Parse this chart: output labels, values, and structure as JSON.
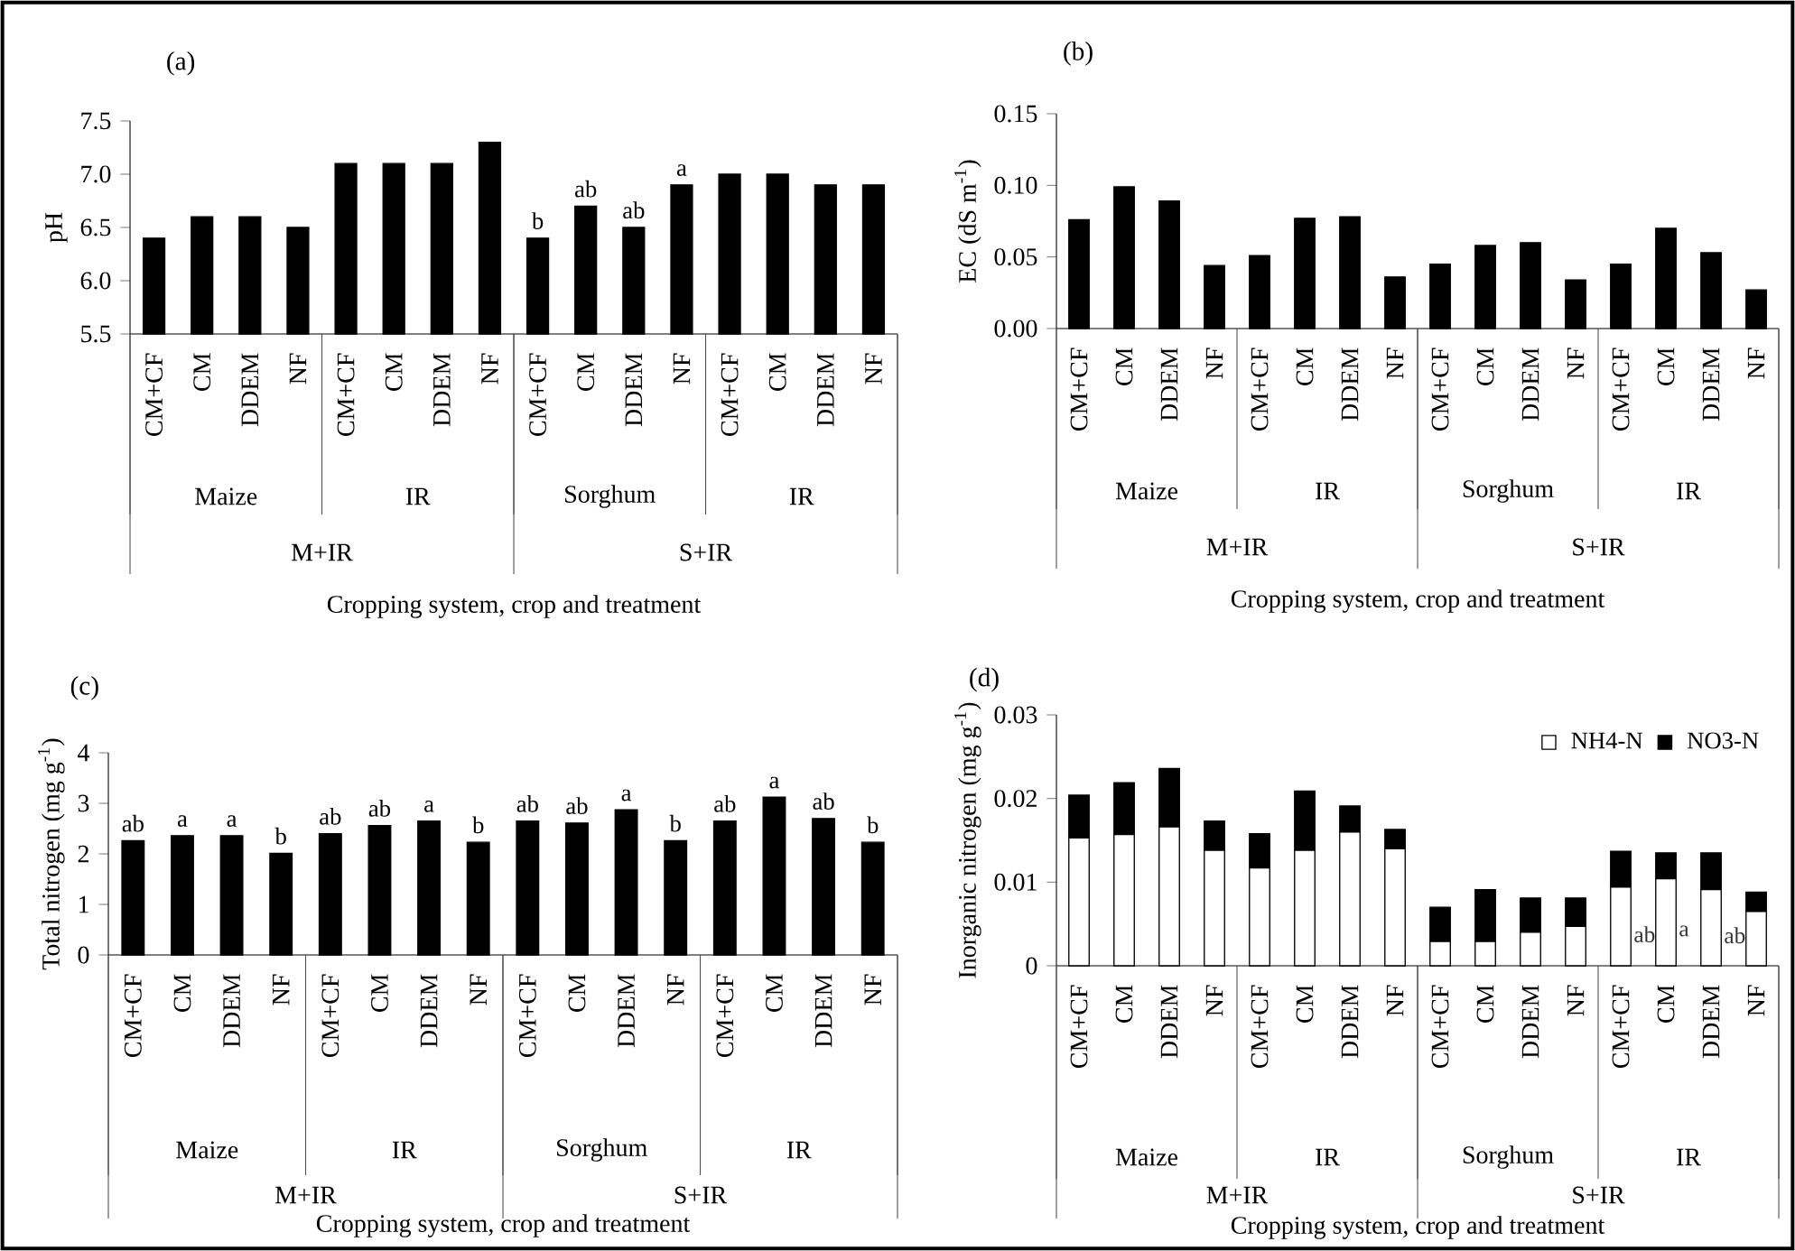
{
  "chart_data": [
    {
      "type": "bar",
      "title": "(a)",
      "ylabel": "pH",
      "xlabel": "Cropping system, crop and treatment",
      "color": "#000000",
      "categories": [
        "CM+CF",
        "CM",
        "DDEM",
        "NF",
        "CM+CF",
        "CM",
        "DDEM",
        "NF",
        "CM+CF",
        "CM",
        "DDEM",
        "NF",
        "CM+CF",
        "CM",
        "DDEM",
        "NF"
      ],
      "values": [
        6.4,
        6.6,
        6.6,
        6.5,
        7.1,
        7.1,
        7.1,
        7.3,
        6.4,
        6.7,
        6.5,
        6.9,
        7.0,
        7.0,
        6.9,
        6.9
      ],
      "value_labels": [
        null,
        null,
        null,
        null,
        null,
        null,
        null,
        null,
        "b",
        "ab",
        "ab",
        "a",
        null,
        null,
        null,
        null
      ],
      "ylim": [
        5.5,
        7.5
      ],
      "yticks": [
        5.5,
        {
          "value": 6,
          "label": "6.0"
        },
        6.5,
        {
          "value": 7,
          "label": "7.0"
        },
        7.5
      ],
      "annotations": [
        "Maize",
        "IR",
        "Sorghum",
        "IR",
        "M+IR",
        "S+IR"
      ]
    },
    {
      "type": "bar",
      "title": "(b)",
      "ylabel": "EC (dS m$^{-1}$)",
      "xlabel": "Cropping system, crop and treatment",
      "color": "#000000",
      "categories": [
        "CM+CF",
        "CM",
        "DDEM",
        "NF",
        "CM+CF",
        "CM",
        "DDEM",
        "NF",
        "CM+CF",
        "CM",
        "DDEM",
        "NF",
        "CM+CF",
        "CM",
        "DDEM",
        "NF"
      ],
      "values": [
        0.076,
        0.099,
        0.089,
        0.044,
        0.051,
        0.077,
        0.078,
        0.036,
        0.045,
        0.058,
        0.06,
        0.034,
        0.045,
        0.07,
        0.053,
        0.027
      ],
      "ylim": [
        0,
        0.15
      ],
      "yticks": [
        {
          "value": 0,
          "label": "0.00"
        },
        0.05,
        {
          "value": 0.1,
          "label": "0.10"
        },
        0.15
      ],
      "annotations": [
        "Maize",
        "IR",
        "Sorghum",
        "IR",
        "M+IR",
        "S+IR"
      ]
    },
    {
      "type": "bar",
      "title": "(c)",
      "ylabel": "Total nitrogen (mg g$^{-1}$)",
      "xlabel": "Cropping system, crop and treatment",
      "color": "#000000",
      "categories": [
        "CM+CF",
        "CM",
        "DDEM",
        "NF",
        "CM+CF",
        "CM",
        "DDEM",
        "NF",
        "CM+CF",
        "CM",
        "DDEM",
        "NF",
        "CM+CF",
        "CM",
        "DDEM",
        "NF"
      ],
      "values": [
        2.26,
        2.36,
        2.36,
        2.01,
        2.4,
        2.56,
        2.65,
        2.23,
        2.65,
        2.61,
        2.87,
        2.26,
        2.65,
        3.12,
        2.7,
        2.23
      ],
      "value_labels": [
        "ab",
        "a",
        "a",
        "b",
        "ab",
        "ab",
        "a",
        "b",
        "ab",
        "ab",
        "a",
        "b",
        "ab",
        "a",
        "ab",
        "b"
      ],
      "ylim": [
        0,
        4
      ],
      "yticks": [
        0,
        1,
        2,
        3,
        4
      ],
      "annotations": [
        "Maize",
        "IR",
        "Sorghum",
        "IR",
        "M+IR",
        "S+IR"
      ]
    },
    {
      "type": "bar",
      "title": "(d)",
      "ylabel": "Inorganic nitrogen (mg g$^{-1}$)",
      "xlabel": "Cropping system, crop and treatment",
      "stacked": true,
      "legend": "top right",
      "categories": [
        "CM+CF",
        "CM",
        "DDEM",
        "NF",
        "CM+CF",
        "CM",
        "DDEM",
        "NF",
        "CM+CF",
        "CM",
        "DDEM",
        "NF",
        "CM+CF",
        "CM",
        "DDEM",
        "NF"
      ],
      "series": [
        {
          "name": "NH4-N",
          "color": "#ffffff",
          "values": [
            0.0153,
            0.0157,
            0.0166,
            0.0138,
            0.0117,
            0.0138,
            0.016,
            0.014,
            0.0029,
            0.0029,
            0.004,
            0.0047,
            0.0094,
            0.0104,
            0.0091,
            0.0065
          ],
          "value_labels": [
            null,
            null,
            null,
            null,
            null,
            null,
            null,
            null,
            null,
            null,
            null,
            null,
            "ab",
            "a",
            "ab",
            null
          ]
        },
        {
          "name": "NO3-N",
          "color": "#000000",
          "values": [
            0.0051,
            0.0062,
            0.007,
            0.0035,
            0.0041,
            0.0071,
            0.0031,
            0.0023,
            0.0041,
            0.0062,
            0.0041,
            0.0034,
            0.0043,
            0.0031,
            0.0044,
            0.0023
          ]
        }
      ],
      "ylim": [
        0,
        0.03
      ],
      "yticks": [
        0,
        0.01,
        0.02,
        0.03
      ],
      "annotations": [
        "Maize",
        "IR",
        "Sorghum",
        "IR",
        "M+IR",
        "S+IR"
      ]
    }
  ]
}
